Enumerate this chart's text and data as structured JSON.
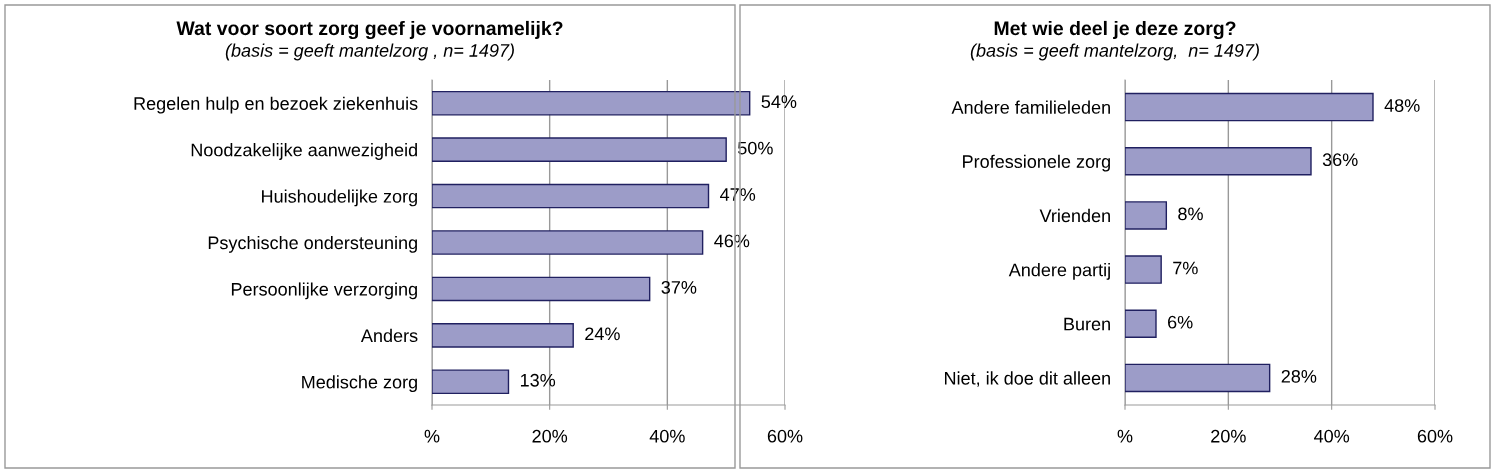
{
  "chart_data": [
    {
      "type": "bar",
      "orientation": "horizontal",
      "title": "Wat voor soort zorg geef je voornamelijk?",
      "subtitle": "(basis = geeft mantelzorg , n= 1497)",
      "categories": [
        "Regelen hulp en bezoek ziekenhuis",
        "Noodzakelijke aanwezigheid",
        "Huishoudelijke zorg",
        "Psychische ondersteuning",
        "Persoonlijke verzorging",
        "Anders",
        "Medische zorg"
      ],
      "values": [
        54,
        50,
        47,
        46,
        37,
        24,
        13
      ],
      "value_labels": [
        "54%",
        "50%",
        "47%",
        "46%",
        "37%",
        "24%",
        "13%"
      ],
      "color": "#9c9cc8",
      "xlim": [
        0,
        60
      ],
      "xticks": [
        {
          "value": 0,
          "label": "%"
        },
        {
          "value": 20,
          "label": "20%"
        },
        {
          "value": 40,
          "label": "40%"
        },
        {
          "value": 60,
          "label": "60%"
        }
      ],
      "grid": "x",
      "legend": false
    },
    {
      "type": "bar",
      "orientation": "horizontal",
      "title": "Met wie deel je deze zorg?",
      "subtitle": "(basis = geeft mantelzorg,  n= 1497)",
      "categories": [
        "Andere familieleden",
        "Professionele zorg",
        "Vrienden",
        "Andere partij",
        "Buren",
        "Niet, ik doe dit alleen"
      ],
      "values": [
        48,
        36,
        8,
        7,
        6,
        28
      ],
      "value_labels": [
        "48%",
        "36%",
        "8%",
        "7%",
        "6%",
        "28%"
      ],
      "color": "#9c9cc8",
      "xlim": [
        0,
        60
      ],
      "xticks": [
        {
          "value": 0,
          "label": "%"
        },
        {
          "value": 20,
          "label": "20%"
        },
        {
          "value": 40,
          "label": "40%"
        },
        {
          "value": 60,
          "label": "60%"
        }
      ],
      "grid": "x",
      "legend": false
    }
  ]
}
